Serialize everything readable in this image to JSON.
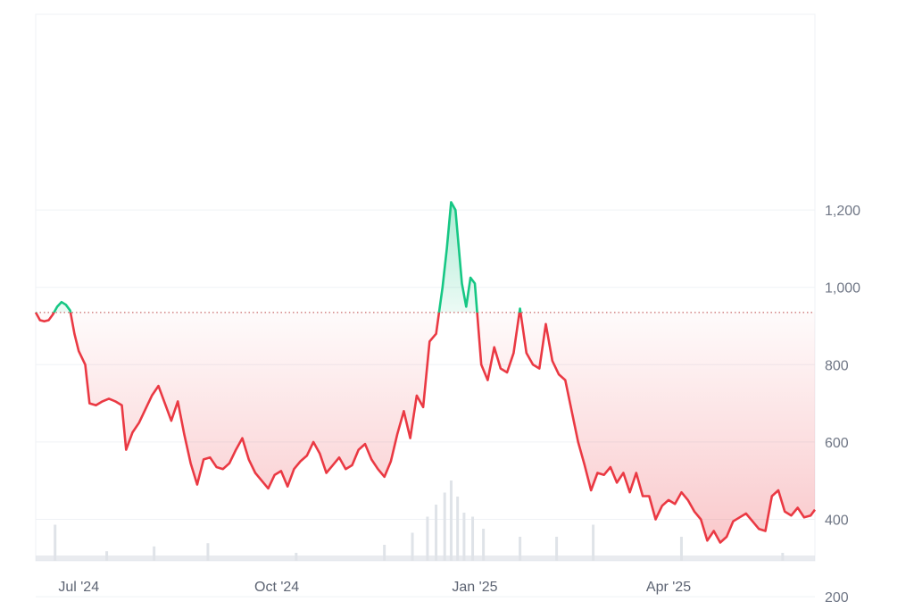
{
  "chart_data": {
    "type": "area",
    "title": "",
    "xlabel": "",
    "ylabel": "",
    "y_ticks": [
      200,
      400,
      600,
      800,
      1000,
      1200
    ],
    "y_tick_labels": [
      "200",
      "400",
      "600",
      "800",
      "1,000",
      "1,200"
    ],
    "ylim": [
      0,
      1400
    ],
    "x_ticks": [
      {
        "label": "Jul '24",
        "date": "2024-07-01"
      },
      {
        "label": "Oct '24",
        "date": "2024-10-01"
      },
      {
        "label": "Jan '25",
        "date": "2025-01-01"
      },
      {
        "label": "Apr '25",
        "date": "2025-04-01"
      }
    ],
    "x_range": [
      "2024-06-11",
      "2025-06-08"
    ],
    "baseline": 935,
    "grid": true,
    "legend": "none",
    "colors": {
      "above": "#16c784",
      "below": "#ea3943",
      "above_fill": "#16c784",
      "below_fill": "#ea3943",
      "grid": "#eff2f5",
      "baseline": "#c96868",
      "volume": "#dfe3e8"
    },
    "series": [
      {
        "values": [
          [
            "2024-06-11",
            935
          ],
          [
            "2024-06-13",
            915
          ],
          [
            "2024-06-15",
            912
          ],
          [
            "2024-06-17",
            915
          ],
          [
            "2024-06-19",
            930
          ],
          [
            "2024-06-21",
            950
          ],
          [
            "2024-06-23",
            962
          ],
          [
            "2024-06-25",
            955
          ],
          [
            "2024-06-27",
            940
          ],
          [
            "2024-06-29",
            880
          ],
          [
            "2024-07-01",
            835
          ],
          [
            "2024-07-04",
            800
          ],
          [
            "2024-07-06",
            700
          ],
          [
            "2024-07-09",
            695
          ],
          [
            "2024-07-12",
            705
          ],
          [
            "2024-07-15",
            712
          ],
          [
            "2024-07-18",
            705
          ],
          [
            "2024-07-21",
            695
          ],
          [
            "2024-07-23",
            580
          ],
          [
            "2024-07-26",
            625
          ],
          [
            "2024-07-29",
            650
          ],
          [
            "2024-08-01",
            685
          ],
          [
            "2024-08-04",
            720
          ],
          [
            "2024-08-07",
            745
          ],
          [
            "2024-08-10",
            700
          ],
          [
            "2024-08-13",
            655
          ],
          [
            "2024-08-16",
            705
          ],
          [
            "2024-08-19",
            620
          ],
          [
            "2024-08-22",
            545
          ],
          [
            "2024-08-25",
            490
          ],
          [
            "2024-08-28",
            555
          ],
          [
            "2024-08-31",
            560
          ],
          [
            "2024-09-03",
            535
          ],
          [
            "2024-09-06",
            530
          ],
          [
            "2024-09-09",
            545
          ],
          [
            "2024-09-12",
            580
          ],
          [
            "2024-09-15",
            610
          ],
          [
            "2024-09-18",
            555
          ],
          [
            "2024-09-21",
            520
          ],
          [
            "2024-09-24",
            500
          ],
          [
            "2024-09-27",
            480
          ],
          [
            "2024-09-30",
            515
          ],
          [
            "2024-10-03",
            525
          ],
          [
            "2024-10-06",
            485
          ],
          [
            "2024-10-09",
            530
          ],
          [
            "2024-10-12",
            550
          ],
          [
            "2024-10-15",
            565
          ],
          [
            "2024-10-18",
            600
          ],
          [
            "2024-10-21",
            570
          ],
          [
            "2024-10-24",
            520
          ],
          [
            "2024-10-27",
            540
          ],
          [
            "2024-10-30",
            560
          ],
          [
            "2024-11-02",
            530
          ],
          [
            "2024-11-05",
            540
          ],
          [
            "2024-11-08",
            580
          ],
          [
            "2024-11-11",
            595
          ],
          [
            "2024-11-14",
            555
          ],
          [
            "2024-11-17",
            530
          ],
          [
            "2024-11-20",
            510
          ],
          [
            "2024-11-23",
            550
          ],
          [
            "2024-11-26",
            620
          ],
          [
            "2024-11-29",
            680
          ],
          [
            "2024-12-02",
            610
          ],
          [
            "2024-12-05",
            720
          ],
          [
            "2024-12-08",
            690
          ],
          [
            "2024-12-11",
            860
          ],
          [
            "2024-12-14",
            880
          ],
          [
            "2024-12-17",
            1000
          ],
          [
            "2024-12-19",
            1100
          ],
          [
            "2024-12-21",
            1220
          ],
          [
            "2024-12-23",
            1200
          ],
          [
            "2024-12-26",
            1010
          ],
          [
            "2024-12-28",
            950
          ],
          [
            "2024-12-30",
            1025
          ],
          [
            "2025-01-01",
            1010
          ],
          [
            "2025-01-04",
            800
          ],
          [
            "2025-01-07",
            760
          ],
          [
            "2025-01-10",
            845
          ],
          [
            "2025-01-13",
            790
          ],
          [
            "2025-01-16",
            780
          ],
          [
            "2025-01-19",
            830
          ],
          [
            "2025-01-22",
            945
          ],
          [
            "2025-01-25",
            830
          ],
          [
            "2025-01-28",
            800
          ],
          [
            "2025-01-31",
            790
          ],
          [
            "2025-02-03",
            905
          ],
          [
            "2025-02-06",
            810
          ],
          [
            "2025-02-09",
            775
          ],
          [
            "2025-02-12",
            760
          ],
          [
            "2025-02-15",
            680
          ],
          [
            "2025-02-18",
            600
          ],
          [
            "2025-02-21",
            540
          ],
          [
            "2025-02-24",
            475
          ],
          [
            "2025-02-27",
            520
          ],
          [
            "2025-03-02",
            515
          ],
          [
            "2025-03-05",
            535
          ],
          [
            "2025-03-08",
            495
          ],
          [
            "2025-03-11",
            520
          ],
          [
            "2025-03-14",
            470
          ],
          [
            "2025-03-17",
            520
          ],
          [
            "2025-03-20",
            460
          ],
          [
            "2025-03-23",
            460
          ],
          [
            "2025-03-26",
            400
          ],
          [
            "2025-03-29",
            435
          ],
          [
            "2025-04-01",
            450
          ],
          [
            "2025-04-04",
            440
          ],
          [
            "2025-04-07",
            470
          ],
          [
            "2025-04-10",
            450
          ],
          [
            "2025-04-13",
            420
          ],
          [
            "2025-04-16",
            400
          ],
          [
            "2025-04-19",
            345
          ],
          [
            "2025-04-22",
            370
          ],
          [
            "2025-04-25",
            340
          ],
          [
            "2025-04-28",
            355
          ],
          [
            "2025-05-01",
            395
          ],
          [
            "2025-05-04",
            405
          ],
          [
            "2025-05-07",
            415
          ],
          [
            "2025-05-10",
            395
          ],
          [
            "2025-05-13",
            375
          ],
          [
            "2025-05-16",
            370
          ],
          [
            "2025-05-19",
            460
          ],
          [
            "2025-05-22",
            475
          ],
          [
            "2025-05-25",
            420
          ],
          [
            "2025-05-28",
            410
          ],
          [
            "2025-05-31",
            430
          ],
          [
            "2025-06-03",
            405
          ],
          [
            "2025-06-06",
            410
          ],
          [
            "2025-06-08",
            425
          ]
        ]
      }
    ],
    "volume": [
      {
        "date": "2024-06-20",
        "level": 0.45
      },
      {
        "date": "2024-07-14",
        "level": 0.12
      },
      {
        "date": "2024-08-05",
        "level": 0.18
      },
      {
        "date": "2024-08-30",
        "level": 0.22
      },
      {
        "date": "2024-10-10",
        "level": 0.1
      },
      {
        "date": "2024-11-20",
        "level": 0.2
      },
      {
        "date": "2024-12-03",
        "level": 0.35
      },
      {
        "date": "2024-12-10",
        "level": 0.55
      },
      {
        "date": "2024-12-14",
        "level": 0.7
      },
      {
        "date": "2024-12-18",
        "level": 0.85
      },
      {
        "date": "2024-12-21",
        "level": 1.0
      },
      {
        "date": "2024-12-24",
        "level": 0.8
      },
      {
        "date": "2024-12-27",
        "level": 0.6
      },
      {
        "date": "2024-12-31",
        "level": 0.55
      },
      {
        "date": "2025-01-05",
        "level": 0.4
      },
      {
        "date": "2025-01-22",
        "level": 0.3
      },
      {
        "date": "2025-02-08",
        "level": 0.3
      },
      {
        "date": "2025-02-25",
        "level": 0.45
      },
      {
        "date": "2025-04-07",
        "level": 0.3
      },
      {
        "date": "2025-05-24",
        "level": 0.1
      }
    ]
  }
}
